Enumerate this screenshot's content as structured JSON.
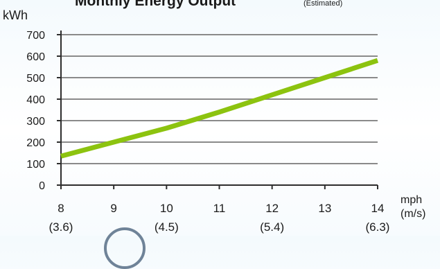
{
  "chart_data": {
    "type": "line",
    "title": "Monthly Energy Output",
    "title_note": "(Estimated)",
    "ylabel": "kWh",
    "xlabel_line1": "mph",
    "xlabel_line2": "(m/s)",
    "ylim": [
      0,
      700
    ],
    "yticks": [
      0,
      100,
      200,
      300,
      400,
      500,
      600,
      700
    ],
    "xlim": [
      8,
      14
    ],
    "xticks": [
      {
        "value": 8,
        "label": "8",
        "sub": "(3.6)"
      },
      {
        "value": 9,
        "label": "9",
        "sub": ""
      },
      {
        "value": 10,
        "label": "10",
        "sub": "(4.5)"
      },
      {
        "value": 11,
        "label": "11",
        "sub": ""
      },
      {
        "value": 12,
        "label": "12",
        "sub": "(5.4)"
      },
      {
        "value": 13,
        "label": "13",
        "sub": ""
      },
      {
        "value": 14,
        "label": "14",
        "sub": "(6.3)"
      }
    ],
    "grid": true,
    "series": [
      {
        "color": "#8cc30f",
        "x": [
          8,
          9,
          10,
          11,
          12,
          13,
          14
        ],
        "y": [
          135,
          200,
          265,
          340,
          420,
          500,
          580
        ]
      }
    ]
  },
  "colors": {
    "axis": "#2d2d2d",
    "grid": "#8a8a8a",
    "text": "#1a1a1a",
    "line": "#8cc30f"
  }
}
